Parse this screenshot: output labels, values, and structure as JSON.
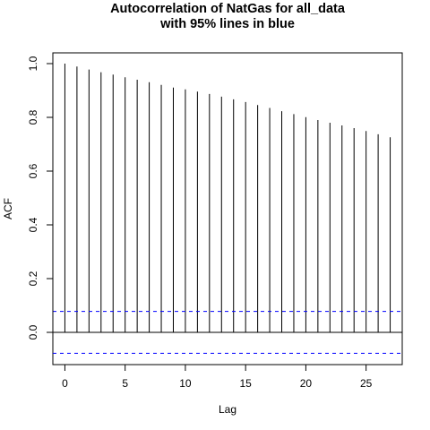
{
  "chart_data": {
    "type": "bar",
    "title_line1": "Autocorrelation of NatGas for all_data",
    "title_line2": "with 95% lines in blue",
    "xlabel": "Lag",
    "ylabel": "ACF",
    "xlim": [
      -1,
      28
    ],
    "ylim": [
      -0.12,
      1.04
    ],
    "x_ticks": [
      0,
      5,
      10,
      15,
      20,
      25
    ],
    "y_ticks": [
      0.0,
      0.2,
      0.4,
      0.6,
      0.8,
      1.0
    ],
    "lags": [
      0,
      1,
      2,
      3,
      4,
      5,
      6,
      7,
      8,
      9,
      10,
      11,
      12,
      13,
      14,
      15,
      16,
      17,
      18,
      19,
      20,
      21,
      22,
      23,
      24,
      25,
      26,
      27
    ],
    "acf": [
      1.0,
      0.989,
      0.978,
      0.968,
      0.959,
      0.949,
      0.94,
      0.931,
      0.921,
      0.911,
      0.904,
      0.896,
      0.887,
      0.877,
      0.867,
      0.857,
      0.846,
      0.835,
      0.823,
      0.812,
      0.801,
      0.79,
      0.78,
      0.77,
      0.76,
      0.749,
      0.737,
      0.726
    ],
    "confidence_limit": 0.078,
    "confidence_color": "#0000ff",
    "bar_color": "#000000",
    "grid": false
  }
}
